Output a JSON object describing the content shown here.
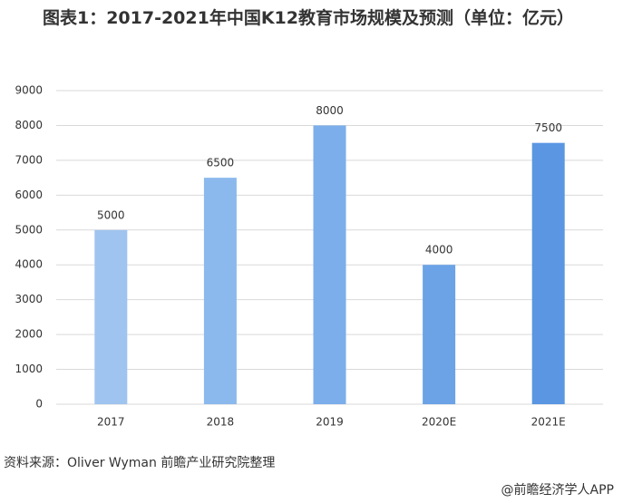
{
  "chart_data": {
    "type": "bar",
    "title": "图表1：2017-2021年中国K12教育市场规模及预测（单位：亿元）",
    "categories": [
      "2017",
      "2018",
      "2019",
      "2020E",
      "2021E"
    ],
    "values": [
      5000,
      6500,
      8000,
      4000,
      7500
    ],
    "colors": [
      "#9fc4ef",
      "#8cb9ed",
      "#7baeea",
      "#6ba3e6",
      "#5a96e2"
    ],
    "ylim": [
      0,
      9000
    ],
    "yticks": [
      0,
      1000,
      2000,
      3000,
      4000,
      5000,
      6000,
      7000,
      8000,
      9000
    ],
    "grid": true,
    "source": "资料来源：Oliver Wyman  前瞻产业研究院整理",
    "footer": "@前瞻经济学人APP"
  }
}
